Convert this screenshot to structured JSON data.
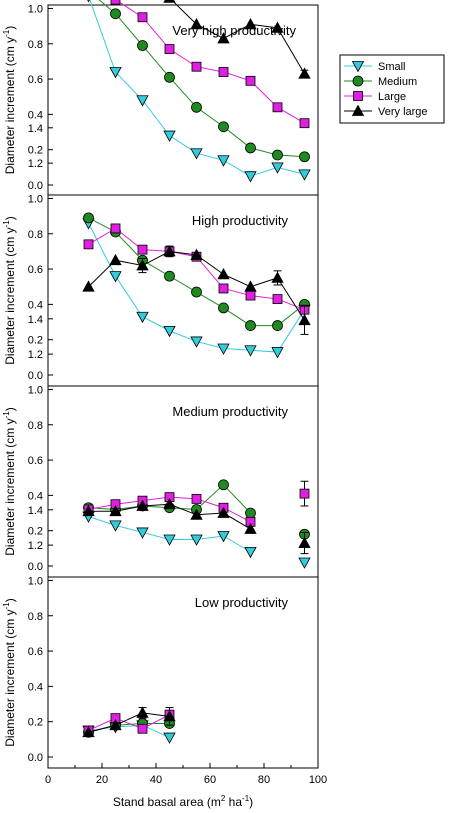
{
  "chart_data": {
    "type": "line",
    "xlabel": "Stand basal area (m² ha⁻¹)",
    "xlim": [
      0,
      100
    ],
    "xticks": [
      0,
      20,
      40,
      60,
      80,
      100
    ],
    "legend_position": "top-right",
    "series_styles": [
      {
        "name": "Small",
        "color": "#33ccdd",
        "marker": "triangle-down"
      },
      {
        "name": "Medium",
        "color": "#1f8a1f",
        "marker": "circle"
      },
      {
        "name": "Large",
        "color": "#e020e0",
        "marker": "square"
      },
      {
        "name": "Very large",
        "color": "#000000",
        "marker": "triangle-up"
      }
    ],
    "panels": [
      {
        "title": "Very high productivity",
        "ylabel": "Diameter increment (cm y-1)",
        "ylim": [
          -0.1,
          1.6
        ],
        "yticks": [
          0.0,
          0.2,
          0.4,
          0.6,
          0.8,
          1.0,
          1.2,
          1.4,
          1.6
        ],
        "series": [
          {
            "name": "Small",
            "x": [
              15,
              25,
              35,
              45,
              55,
              65,
              75,
              85,
              95
            ],
            "y": [
              1.07,
              0.64,
              0.48,
              0.28,
              0.18,
              0.14,
              0.05,
              0.1,
              0.06
            ]
          },
          {
            "name": "Medium",
            "x": [
              15,
              25,
              35,
              45,
              55,
              65,
              75,
              85,
              95
            ],
            "y": [
              1.1,
              0.97,
              0.79,
              0.61,
              0.44,
              0.33,
              0.21,
              0.17,
              0.16
            ]
          },
          {
            "name": "Large",
            "x": [
              15,
              25,
              35,
              45,
              55,
              65,
              75,
              85,
              95
            ],
            "y": [
              1.12,
              1.05,
              0.95,
              0.77,
              0.67,
              0.64,
              0.59,
              0.44,
              0.35
            ]
          },
          {
            "name": "Very large",
            "x": [
              15,
              25,
              35,
              45,
              55,
              65,
              75,
              85,
              95
            ],
            "y": [
              1.3,
              1.28,
              1.26,
              1.06,
              0.91,
              0.83,
              0.91,
              0.89,
              0.63
            ],
            "err": [
              0.05,
              0,
              0,
              0,
              0,
              0,
              0,
              0,
              0.02
            ]
          }
        ]
      },
      {
        "title": "High productivity",
        "ylabel": "Diameter increment (cm y-1)",
        "ylim": [
          -0.1,
          1.6
        ],
        "yticks": [
          0.0,
          0.2,
          0.4,
          0.6,
          0.8,
          1.0,
          1.2,
          1.4
        ],
        "series": [
          {
            "name": "Small",
            "x": [
              15,
              25,
              35,
              45,
              55,
              65,
              75,
              85,
              95
            ],
            "y": [
              0.86,
              0.56,
              0.33,
              0.25,
              0.19,
              0.15,
              0.14,
              0.13,
              0.37
            ]
          },
          {
            "name": "Medium",
            "x": [
              15,
              25,
              35,
              45,
              55,
              65,
              75,
              85,
              95
            ],
            "y": [
              0.89,
              0.81,
              0.65,
              0.56,
              0.47,
              0.38,
              0.28,
              0.28,
              0.4
            ]
          },
          {
            "name": "Large",
            "x": [
              15,
              25,
              35,
              45,
              55,
              65,
              75,
              85,
              95
            ],
            "y": [
              0.74,
              0.83,
              0.71,
              0.7,
              0.67,
              0.49,
              0.45,
              0.43,
              0.37
            ]
          },
          {
            "name": "Very large",
            "x": [
              15,
              25,
              35,
              45,
              55,
              65,
              75,
              85,
              95
            ],
            "y": [
              0.5,
              0.65,
              0.62,
              0.7,
              0.68,
              0.57,
              0.5,
              0.55,
              0.31
            ],
            "err": [
              0,
              0,
              0.04,
              0.03,
              0,
              0,
              0,
              0.04,
              0.08
            ]
          }
        ]
      },
      {
        "title": "Medium productivity",
        "ylabel": "Diameter increment (cm y-1)",
        "ylim": [
          -0.1,
          1.6
        ],
        "yticks": [
          0.0,
          0.2,
          0.4,
          0.6,
          0.8,
          1.0,
          1.2,
          1.4
        ],
        "series": [
          {
            "name": "Small",
            "x": [
              15,
              25,
              35,
              45,
              55,
              65,
              75,
              85,
              95
            ],
            "y": [
              0.28,
              0.23,
              0.19,
              0.15,
              0.15,
              0.17,
              0.08,
              null,
              0.02
            ]
          },
          {
            "name": "Medium",
            "x": [
              15,
              25,
              35,
              45,
              55,
              65,
              75,
              85,
              95
            ],
            "y": [
              0.33,
              0.32,
              0.34,
              0.33,
              0.32,
              0.46,
              0.3,
              null,
              0.18
            ]
          },
          {
            "name": "Large",
            "x": [
              15,
              25,
              35,
              45,
              55,
              65,
              75,
              85,
              95
            ],
            "y": [
              0.32,
              0.35,
              0.37,
              0.39,
              0.38,
              0.33,
              0.25,
              null,
              0.41
            ],
            "err": [
              0,
              0,
              0,
              0,
              0,
              0,
              0,
              0,
              0.07
            ]
          },
          {
            "name": "Very large",
            "x": [
              15,
              25,
              35,
              45,
              55,
              65,
              75,
              85,
              95
            ],
            "y": [
              0.31,
              0.31,
              0.34,
              0.35,
              0.29,
              0.3,
              0.21,
              null,
              0.13
            ],
            "err": [
              0,
              0,
              0,
              0,
              0,
              0,
              0,
              0,
              0.06
            ]
          }
        ]
      },
      {
        "title": "Low productivity",
        "ylabel": "Diameter increment (cm y-1)",
        "ylim": [
          -0.1,
          1.6
        ],
        "yticks": [
          0.0,
          0.2,
          0.4,
          0.6,
          0.8,
          1.0,
          1.2,
          1.4
        ],
        "series": [
          {
            "name": "Small",
            "x": [
              15,
              25,
              35,
              45
            ],
            "y": [
              0.15,
              0.17,
              0.18,
              0.11
            ]
          },
          {
            "name": "Medium",
            "x": [
              15,
              25,
              35,
              45
            ],
            "y": [
              0.14,
              0.18,
              0.19,
              0.19
            ]
          },
          {
            "name": "Large",
            "x": [
              15,
              25,
              35,
              45
            ],
            "y": [
              0.15,
              0.22,
              0.16,
              0.24
            ]
          },
          {
            "name": "Very large",
            "x": [
              15,
              25,
              35,
              45
            ],
            "y": [
              0.14,
              0.18,
              0.25,
              0.23
            ],
            "err": [
              0,
              0,
              0.03,
              0.05
            ]
          }
        ]
      }
    ]
  }
}
